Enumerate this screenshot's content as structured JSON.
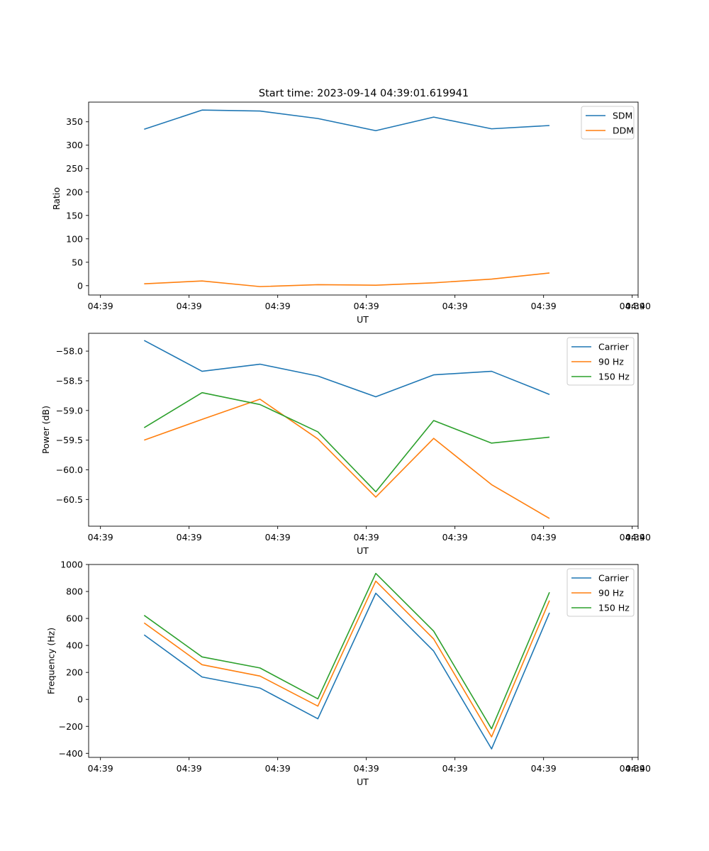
{
  "figure_title": "Start time: 2023-09-14 04:39:01.619941",
  "chart_data": [
    {
      "type": "line",
      "title": "Start time: 2023-09-14 04:39:01.619941",
      "xlabel": "UT",
      "ylabel": "Ratio",
      "xlim": [
        -0.2,
        9.1
      ],
      "ylim": [
        -20,
        392
      ],
      "x_ticks": [
        0,
        1.5,
        3,
        4.5,
        6,
        7.5,
        9
      ],
      "x_tick_labels": [
        "04:39",
        "04:39",
        "04:39",
        "04:39",
        "04:39",
        "04:39",
        "04:39",
        "04:40"
      ],
      "x_ticks_positions": [
        0,
        1.5,
        3,
        4.5,
        6,
        7.5,
        9,
        9.1
      ],
      "y_ticks": [
        0,
        50,
        100,
        150,
        200,
        250,
        300,
        350
      ],
      "y_tick_labels": [
        "0",
        "50",
        "100",
        "150",
        "200",
        "250",
        "300",
        "350"
      ],
      "x": [
        0.74,
        1.72,
        2.7,
        3.68,
        4.66,
        5.64,
        6.62,
        7.6
      ],
      "legend_position": "top-right",
      "series": [
        {
          "name": "SDM",
          "color": "#1f77b4",
          "values": [
            334,
            375,
            373,
            357,
            331,
            360,
            335,
            342
          ]
        },
        {
          "name": "DDM",
          "color": "#ff7f0e",
          "values": [
            4,
            10,
            -2,
            2,
            1,
            6,
            14,
            27
          ]
        }
      ]
    },
    {
      "type": "line",
      "title": "",
      "xlabel": "UT",
      "ylabel": "Power (dB)",
      "xlim": [
        -0.2,
        9.1
      ],
      "ylim": [
        -60.95,
        -57.7
      ],
      "x_tick_labels": [
        "04:39",
        "04:39",
        "04:39",
        "04:39",
        "04:39",
        "04:39",
        "04:39",
        "04:40"
      ],
      "x_ticks_positions": [
        0,
        1.5,
        3,
        4.5,
        6,
        7.5,
        9,
        9.1
      ],
      "y_ticks": [
        -58.0,
        -58.5,
        -59.0,
        -59.5,
        -60.0,
        -60.5
      ],
      "y_tick_labels": [
        "−58.0",
        "−58.5",
        "−59.0",
        "−59.5",
        "−60.0",
        "−60.5"
      ],
      "x": [
        0.74,
        1.72,
        2.7,
        3.68,
        4.66,
        5.64,
        6.62,
        7.6
      ],
      "legend_position": "top-right",
      "series": [
        {
          "name": "Carrier",
          "color": "#1f77b4",
          "values": [
            -57.82,
            -58.34,
            -58.22,
            -58.42,
            -58.77,
            -58.4,
            -58.34,
            -58.73
          ]
        },
        {
          "name": "90 Hz",
          "color": "#ff7f0e",
          "values": [
            -59.5,
            -59.15,
            -58.81,
            -59.48,
            -60.46,
            -59.47,
            -60.25,
            -60.82
          ]
        },
        {
          "name": "150 Hz",
          "color": "#2ca02c",
          "values": [
            -59.29,
            -58.7,
            -58.9,
            -59.36,
            -60.37,
            -59.17,
            -59.55,
            -59.45
          ]
        }
      ]
    },
    {
      "type": "line",
      "title": "",
      "xlabel": "UT",
      "ylabel": "Frequency (Hz)",
      "xlim": [
        -0.2,
        9.1
      ],
      "ylim": [
        -430,
        1000
      ],
      "x_tick_labels": [
        "04:39",
        "04:39",
        "04:39",
        "04:39",
        "04:39",
        "04:39",
        "04:39",
        "04:40"
      ],
      "x_ticks_positions": [
        0,
        1.5,
        3,
        4.5,
        6,
        7.5,
        9,
        9.1
      ],
      "y_ticks": [
        -400,
        -200,
        0,
        200,
        400,
        600,
        800,
        1000
      ],
      "y_tick_labels": [
        "−400",
        "−200",
        "0",
        "200",
        "400",
        "600",
        "800",
        "1000"
      ],
      "x": [
        0.74,
        1.72,
        2.7,
        3.68,
        4.66,
        5.64,
        6.62,
        7.6
      ],
      "legend_position": "top-right",
      "series": [
        {
          "name": "Carrier",
          "color": "#1f77b4",
          "values": [
            478,
            166,
            84,
            -144,
            787,
            358,
            -367,
            642
          ]
        },
        {
          "name": "90 Hz",
          "color": "#ff7f0e",
          "values": [
            567,
            257,
            173,
            -50,
            877,
            448,
            -278,
            733
          ]
        },
        {
          "name": "150 Hz",
          "color": "#2ca02c",
          "values": [
            623,
            315,
            233,
            4,
            934,
            506,
            -218,
            794
          ]
        }
      ]
    }
  ]
}
